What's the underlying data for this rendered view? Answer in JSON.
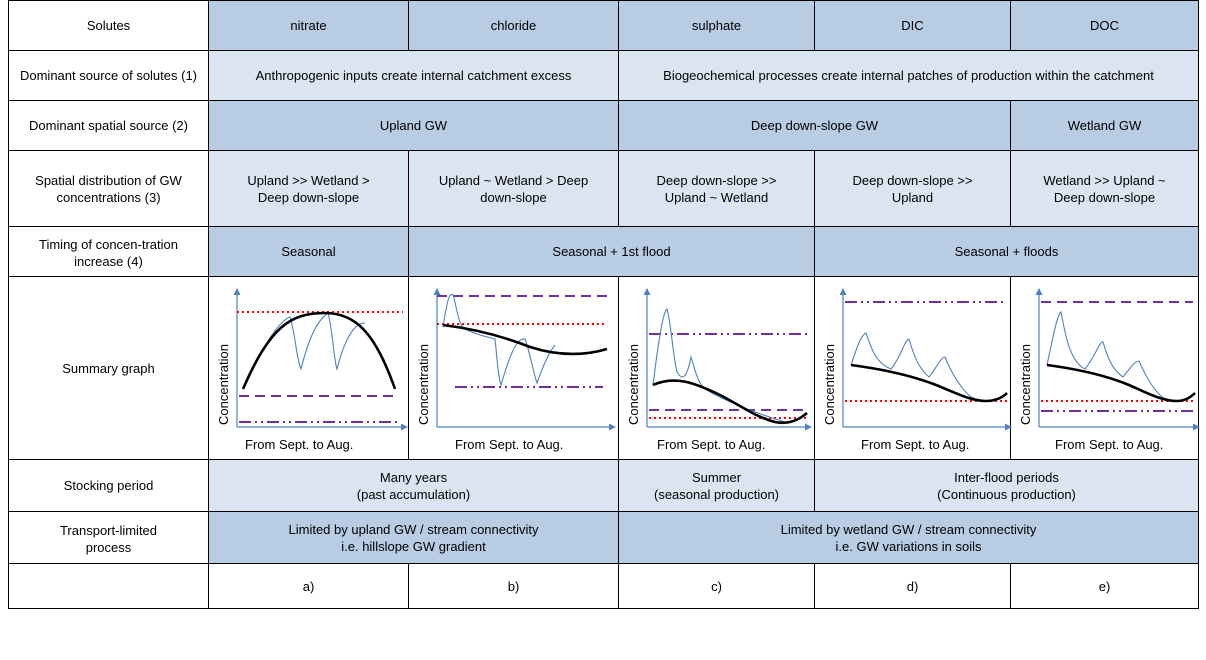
{
  "rows": {
    "solutes": {
      "label": "Solutes",
      "values": [
        "nitrate",
        "chloride",
        "sulphate",
        "DIC",
        "DOC"
      ]
    },
    "dominant_source": {
      "label": "Dominant source of solutes (1)",
      "anthropogenic": "Anthropogenic inputs create internal catchment excess",
      "biogeochemical": "Biogeochemical processes create internal patches of production within the catchment"
    },
    "spatial_source": {
      "label": "Dominant spatial source (2)",
      "upland": "Upland GW",
      "deep": "Deep down-slope GW",
      "wetland": "Wetland GW"
    },
    "spatial_distribution": {
      "label": "Spatial distribution of GW concentrations (3)",
      "values": [
        "Upland >> Wetland > Deep down-slope",
        "Upland ~ Wetland > Deep down-slope",
        "Deep down-slope >> Upland ~ Wetland",
        "Deep down-slope >> Upland",
        "Wetland >> Upland ~ Deep down-slope"
      ]
    },
    "timing": {
      "label": "Timing of concen-tration increase (4)",
      "seasonal": "Seasonal",
      "first_flood": "Seasonal  + 1st flood",
      "floods": "Seasonal + floods"
    },
    "summary": {
      "label": "Summary graph",
      "ylabel": "Concentration",
      "xlabel": "From Sept. to Aug."
    },
    "stocking": {
      "label": "Stocking period",
      "many_years": "Many years",
      "many_years_sub": "(past accumulation)",
      "summer": "Summer",
      "summer_sub": "(seasonal production)",
      "interflood": "Inter-flood periods",
      "interflood_sub": "(Continuous production)"
    },
    "transport": {
      "label": "Transport-limited process",
      "upland_line1": "Limited by  upland GW / stream connectivity",
      "upland_line2": "i.e. hillslope GW gradient",
      "wetland_line1": "Limited by  wetland GW / stream connectivity",
      "wetland_line2": "i.e. GW variations in soils"
    },
    "letters": {
      "values": [
        "a)",
        "b)",
        "c)",
        "d)",
        "e)"
      ]
    }
  },
  "colors": {
    "header_blue": "#b8cce4",
    "light_blue": "#dbe5f1",
    "axis_blue": "#4f81bd",
    "thin_blue": "#4f81bd",
    "red_dotted": "#ff0000",
    "purple": "#7030a0",
    "black": "#000000"
  }
}
